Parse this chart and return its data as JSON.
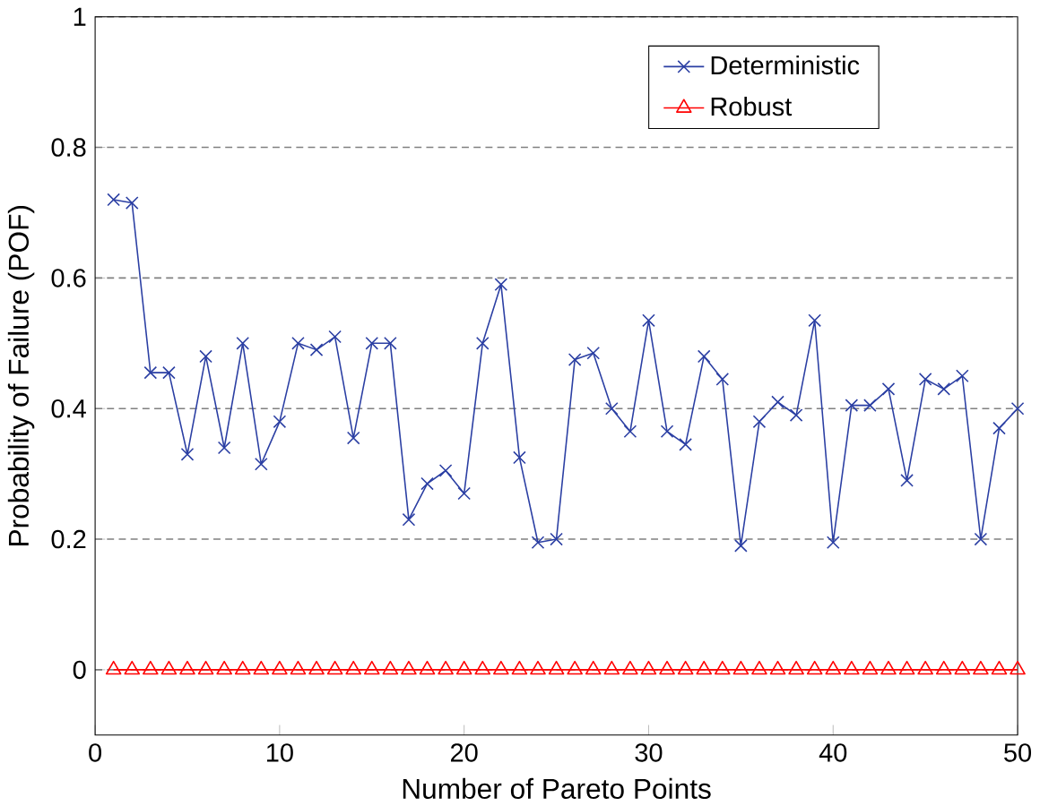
{
  "chart_data": {
    "type": "line",
    "xlabel": "Number of Pareto Points",
    "ylabel": "Probability of Failure (POF)",
    "x": [
      1,
      2,
      3,
      4,
      5,
      6,
      7,
      8,
      9,
      10,
      11,
      12,
      13,
      14,
      15,
      16,
      17,
      18,
      19,
      20,
      21,
      22,
      23,
      24,
      25,
      26,
      27,
      28,
      29,
      30,
      31,
      32,
      33,
      34,
      35,
      36,
      37,
      38,
      39,
      40,
      41,
      42,
      43,
      44,
      45,
      46,
      47,
      48,
      49,
      50
    ],
    "series": [
      {
        "name": "Deterministic",
        "color": "#2b3fa3",
        "marker": "cross",
        "values": [
          0.72,
          0.715,
          0.455,
          0.455,
          0.33,
          0.48,
          0.34,
          0.5,
          0.315,
          0.38,
          0.5,
          0.49,
          0.51,
          0.355,
          0.5,
          0.5,
          0.23,
          0.285,
          0.305,
          0.27,
          0.5,
          0.59,
          0.325,
          0.195,
          0.2,
          0.475,
          0.485,
          0.4,
          0.365,
          0.535,
          0.365,
          0.345,
          0.48,
          0.445,
          0.19,
          0.38,
          0.41,
          0.39,
          0.535,
          0.195,
          0.405,
          0.405,
          0.43,
          0.29,
          0.445,
          0.43,
          0.45,
          0.2,
          0.37,
          0.4
        ]
      },
      {
        "name": "Robust",
        "color": "#ff0000",
        "marker": "triangle",
        "values": [
          0,
          0,
          0,
          0,
          0,
          0,
          0,
          0,
          0,
          0,
          0,
          0,
          0,
          0,
          0,
          0,
          0,
          0,
          0,
          0,
          0,
          0,
          0,
          0,
          0,
          0,
          0,
          0,
          0,
          0,
          0,
          0,
          0,
          0,
          0,
          0,
          0,
          0,
          0,
          0,
          0,
          0,
          0,
          0,
          0,
          0,
          0,
          0,
          0,
          0
        ]
      }
    ],
    "xlim": [
      0,
      50
    ],
    "ylim": [
      -0.1,
      1
    ],
    "xticks": [
      0,
      10,
      20,
      30,
      40,
      50
    ],
    "yticks": [
      0,
      0.2,
      0.4,
      0.6,
      0.8,
      1
    ],
    "grid": "y",
    "legend": "top right"
  }
}
